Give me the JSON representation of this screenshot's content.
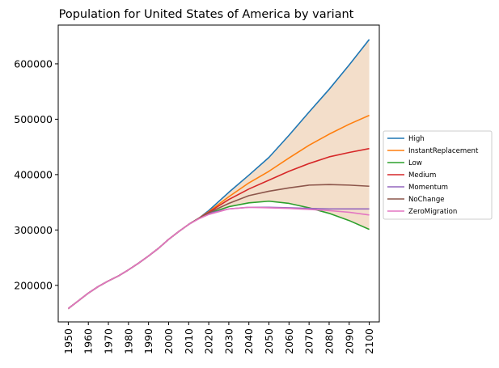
{
  "chart_data": {
    "type": "line",
    "title": "Population for United States of America by variant",
    "xlabel": "",
    "ylabel": "",
    "x_ticks": [
      "1950",
      "1960",
      "1970",
      "1980",
      "1990",
      "2000",
      "2010",
      "2020",
      "2030",
      "2040",
      "2050",
      "2060",
      "2070",
      "2080",
      "2090",
      "2100"
    ],
    "y_ticks": [
      "200000",
      "300000",
      "400000",
      "500000",
      "600000"
    ],
    "xlim": [
      1945,
      2105
    ],
    "ylim": [
      134000,
      670000
    ],
    "grid": false,
    "legend_position": "right",
    "band": {
      "color": "#e9c29f",
      "opacity": 0.55,
      "x": [
        2020,
        2030,
        2040,
        2050,
        2060,
        2070,
        2080,
        2090,
        2100
      ],
      "lower": [
        330000,
        342000,
        349000,
        352000,
        348000,
        340000,
        330000,
        317000,
        301000
      ],
      "upper": [
        335000,
        368000,
        399000,
        431000,
        471000,
        513000,
        554000,
        598000,
        644000
      ]
    },
    "series": [
      {
        "name": "High",
        "color": "#1f77b4",
        "x": [
          1950,
          1955,
          1960,
          1965,
          1970,
          1975,
          1980,
          1985,
          1990,
          1995,
          2000,
          2005,
          2010,
          2015,
          2020,
          2030,
          2040,
          2050,
          2060,
          2070,
          2080,
          2090,
          2100
        ],
        "values": [
          158000,
          172000,
          186000,
          198000,
          208000,
          217000,
          228000,
          240000,
          253000,
          267000,
          283000,
          297000,
          310000,
          321000,
          335000,
          368000,
          399000,
          431000,
          471000,
          513000,
          554000,
          598000,
          644000
        ]
      },
      {
        "name": "InstantReplacement",
        "color": "#ff7f0e",
        "x": [
          1950,
          1955,
          1960,
          1965,
          1970,
          1975,
          1980,
          1985,
          1990,
          1995,
          2000,
          2005,
          2010,
          2015,
          2020,
          2030,
          2040,
          2050,
          2060,
          2070,
          2080,
          2090,
          2100
        ],
        "values": [
          158000,
          172000,
          186000,
          198000,
          208000,
          217000,
          228000,
          240000,
          253000,
          267000,
          283000,
          297000,
          310000,
          321000,
          333000,
          360000,
          385000,
          406000,
          430000,
          453000,
          473000,
          491000,
          507000
        ]
      },
      {
        "name": "Low",
        "color": "#2ca02c",
        "x": [
          1950,
          1955,
          1960,
          1965,
          1970,
          1975,
          1980,
          1985,
          1990,
          1995,
          2000,
          2005,
          2010,
          2015,
          2020,
          2030,
          2040,
          2050,
          2060,
          2070,
          2080,
          2090,
          2100
        ],
        "values": [
          158000,
          172000,
          186000,
          198000,
          208000,
          217000,
          228000,
          240000,
          253000,
          267000,
          283000,
          297000,
          310000,
          321000,
          330000,
          342000,
          349000,
          352000,
          348000,
          340000,
          330000,
          317000,
          301000
        ]
      },
      {
        "name": "Medium",
        "color": "#d62728",
        "x": [
          1950,
          1955,
          1960,
          1965,
          1970,
          1975,
          1980,
          1985,
          1990,
          1995,
          2000,
          2005,
          2010,
          2015,
          2020,
          2030,
          2040,
          2050,
          2060,
          2070,
          2080,
          2090,
          2100
        ],
        "values": [
          158000,
          172000,
          186000,
          198000,
          208000,
          217000,
          228000,
          240000,
          253000,
          267000,
          283000,
          297000,
          310000,
          321000,
          332000,
          355000,
          374000,
          390000,
          406000,
          420000,
          432000,
          440000,
          447000
        ]
      },
      {
        "name": "Momentum",
        "color": "#9467bd",
        "x": [
          1950,
          1955,
          1960,
          1965,
          1970,
          1975,
          1980,
          1985,
          1990,
          1995,
          2000,
          2005,
          2010,
          2015,
          2020,
          2030,
          2040,
          2050,
          2060,
          2070,
          2080,
          2090,
          2100
        ],
        "values": [
          158000,
          172000,
          186000,
          198000,
          208000,
          217000,
          228000,
          240000,
          253000,
          267000,
          283000,
          297000,
          310000,
          321000,
          330000,
          338000,
          341000,
          341000,
          340000,
          339000,
          338000,
          338000,
          338000
        ]
      },
      {
        "name": "NoChange",
        "color": "#8c564b",
        "x": [
          1950,
          1955,
          1960,
          1965,
          1970,
          1975,
          1980,
          1985,
          1990,
          1995,
          2000,
          2005,
          2010,
          2015,
          2020,
          2030,
          2040,
          2050,
          2060,
          2070,
          2080,
          2090,
          2100
        ],
        "values": [
          158000,
          172000,
          186000,
          198000,
          208000,
          217000,
          228000,
          240000,
          253000,
          267000,
          283000,
          297000,
          310000,
          321000,
          331000,
          348000,
          362000,
          370000,
          376000,
          381000,
          382000,
          381000,
          379000
        ]
      },
      {
        "name": "ZeroMigration",
        "color": "#e377c2",
        "x": [
          1950,
          1955,
          1960,
          1965,
          1970,
          1975,
          1980,
          1985,
          1990,
          1995,
          2000,
          2005,
          2010,
          2015,
          2020,
          2030,
          2040,
          2050,
          2060,
          2070,
          2080,
          2090,
          2100
        ],
        "values": [
          158000,
          172000,
          186000,
          198000,
          208000,
          217000,
          228000,
          240000,
          253000,
          267000,
          283000,
          297000,
          310000,
          320000,
          328000,
          338000,
          341000,
          340000,
          339000,
          337000,
          335000,
          332000,
          327000
        ]
      }
    ]
  }
}
